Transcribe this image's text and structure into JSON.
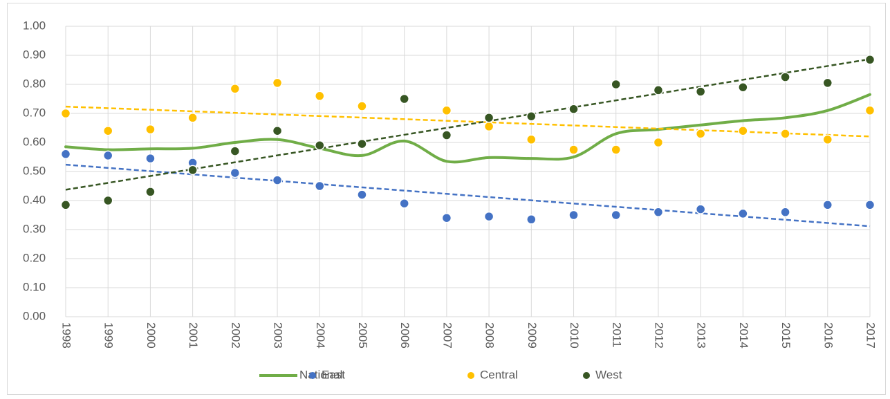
{
  "chart_data": {
    "type": "line-scatter",
    "categories": [
      "1998",
      "1999",
      "2000",
      "2001",
      "2002",
      "2003",
      "2004",
      "2005",
      "2006",
      "2007",
      "2008",
      "2009",
      "2010",
      "2011",
      "2012",
      "2013",
      "2014",
      "2015",
      "2016",
      "2017"
    ],
    "series": [
      {
        "name": "National",
        "color": "#70ad47",
        "style": "line",
        "values": [
          0.585,
          0.575,
          0.578,
          0.58,
          0.6,
          0.61,
          0.58,
          0.555,
          0.605,
          0.535,
          0.548,
          0.545,
          0.55,
          0.63,
          0.645,
          0.66,
          0.675,
          0.685,
          0.71,
          0.765
        ]
      },
      {
        "name": "East",
        "color": "#4472c4",
        "style": "points",
        "trendline": true,
        "values": [
          0.56,
          0.555,
          0.545,
          0.53,
          0.495,
          0.47,
          0.45,
          0.42,
          0.39,
          0.34,
          0.345,
          0.335,
          0.35,
          0.35,
          0.36,
          0.37,
          0.355,
          0.36,
          0.385,
          0.385
        ]
      },
      {
        "name": "Central",
        "color": "#ffc000",
        "style": "points",
        "trendline": true,
        "values": [
          0.7,
          0.64,
          0.645,
          0.685,
          0.785,
          0.805,
          0.76,
          0.725,
          0.75,
          0.71,
          0.655,
          0.61,
          0.575,
          0.575,
          0.6,
          0.63,
          0.64,
          0.63,
          0.61,
          0.71
        ]
      },
      {
        "name": "West",
        "color": "#375623",
        "style": "points",
        "trendline": true,
        "values": [
          0.385,
          0.4,
          0.43,
          0.505,
          0.57,
          0.64,
          0.59,
          0.595,
          0.75,
          0.625,
          0.685,
          0.69,
          0.715,
          0.8,
          0.78,
          0.775,
          0.79,
          0.825,
          0.805,
          0.885
        ]
      }
    ],
    "ylim": [
      0,
      1
    ],
    "yticks": [
      {
        "value": 0,
        "label": "0.00"
      },
      {
        "value": 0.1,
        "label": "0.10"
      },
      {
        "value": 0.2,
        "label": "0.20"
      },
      {
        "value": 0.3,
        "label": "0.30"
      },
      {
        "value": 0.4,
        "label": "0.40"
      },
      {
        "value": 0.5,
        "label": "0.50"
      },
      {
        "value": 0.6,
        "label": "0.60"
      },
      {
        "value": 0.7,
        "label": "0.70"
      },
      {
        "value": 0.8,
        "label": "0.80"
      },
      {
        "value": 0.9,
        "label": "0.90"
      },
      {
        "value": 1,
        "label": "1.00"
      }
    ],
    "grid": true,
    "legend": "bottom"
  }
}
